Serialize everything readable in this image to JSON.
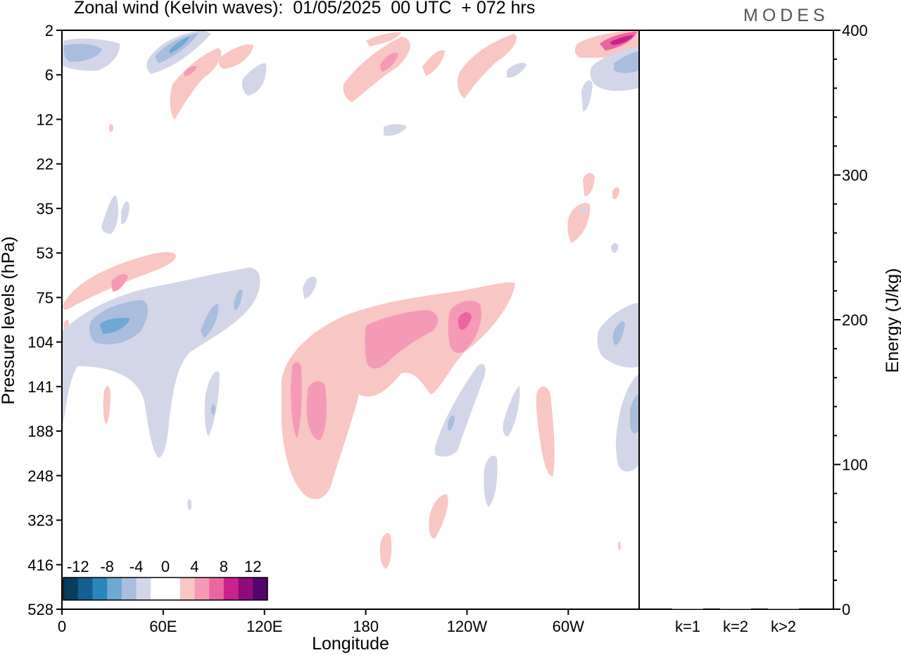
{
  "header": {
    "title": "Zonal wind (Kelvin waves):  01/05/2025  00 UTC  + 072 hrs",
    "logo": "MODES"
  },
  "chart_data": [
    {
      "type": "heatmap",
      "title": "Zonal wind (Kelvin waves):  01/05/2025  00 UTC  + 072 hrs",
      "xlabel": "Longitude",
      "ylabel": "Pressure levels (hPa)",
      "x_ticks": [
        "0",
        "60E",
        "120E",
        "180",
        "120W",
        "60W"
      ],
      "x_tick_values_deg": [
        0,
        60,
        120,
        180,
        240,
        300
      ],
      "x_range_deg": [
        0,
        342
      ],
      "y_ticks": [
        "2",
        "6",
        "12",
        "22",
        "35",
        "53",
        "75",
        "104",
        "141",
        "188",
        "248",
        "323",
        "416",
        "528"
      ],
      "y_scale": "log-pressure, inverted",
      "colorbar": {
        "labels": [
          "-12",
          "-8",
          "-4",
          "0",
          "4",
          "8",
          "12"
        ],
        "colors": [
          "#0a3d5c",
          "#135f91",
          "#2b86bd",
          "#6ea8d3",
          "#a9bedd",
          "#d3d6e8",
          "#ffffff",
          "#ffffff",
          "#f8c6c3",
          "#f49ab6",
          "#ea66a1",
          "#c8238a",
          "#8e0c79",
          "#52056b"
        ],
        "placement": "bottom-left inside plot"
      },
      "features": [
        {
          "sign": "negative",
          "magnitude": "moderate",
          "lon_deg": [
            0,
            30
          ],
          "pressure_hPa": [
            3,
            5
          ]
        },
        {
          "sign": "negative",
          "magnitude": "moderate",
          "lon_deg": [
            55,
            75
          ],
          "pressure_hPa": [
            2,
            6
          ]
        },
        {
          "sign": "positive",
          "magnitude": "weak",
          "lon_deg": [
            65,
            105
          ],
          "pressure_hPa": [
            4,
            12
          ]
        },
        {
          "sign": "positive",
          "magnitude": "moderate",
          "lon_deg": [
            170,
            215
          ],
          "pressure_hPa": [
            3,
            8
          ]
        },
        {
          "sign": "positive",
          "magnitude": "weak",
          "lon_deg": [
            235,
            270
          ],
          "pressure_hPa": [
            3,
            8
          ]
        },
        {
          "sign": "positive",
          "magnitude": "strong",
          "lon_deg": [
            305,
            342
          ],
          "pressure_hPa": [
            2,
            4
          ]
        },
        {
          "sign": "negative",
          "magnitude": "moderate",
          "lon_deg": [
            310,
            342
          ],
          "pressure_hPa": [
            4,
            9
          ]
        },
        {
          "sign": "positive",
          "magnitude": "weak",
          "lon_deg": [
            300,
            315
          ],
          "pressure_hPa": [
            30,
            50
          ]
        },
        {
          "sign": "positive",
          "magnitude": "moderate",
          "lon_deg": [
            15,
            70
          ],
          "pressure_hPa": [
            55,
            100
          ]
        },
        {
          "sign": "negative",
          "magnitude": "moderate",
          "lon_deg": [
            15,
            110
          ],
          "pressure_hPa": [
            80,
            200
          ]
        },
        {
          "sign": "positive",
          "magnitude": "strong",
          "lon_deg": [
            130,
            270
          ],
          "pressure_hPa": [
            70,
            330
          ]
        },
        {
          "sign": "negative",
          "magnitude": "weak",
          "lon_deg": [
            220,
            250
          ],
          "pressure_hPa": [
            110,
            230
          ]
        },
        {
          "sign": "positive",
          "magnitude": "weak",
          "lon_deg": [
            280,
            293
          ],
          "pressure_hPa": [
            140,
            250
          ]
        },
        {
          "sign": "negative",
          "magnitude": "moderate",
          "lon_deg": [
            315,
            342
          ],
          "pressure_hPa": [
            80,
            230
          ]
        },
        {
          "sign": "positive",
          "magnitude": "weak",
          "lon_deg": [
            217,
            230
          ],
          "pressure_hPa": [
            290,
            380
          ]
        },
        {
          "sign": "positive",
          "magnitude": "weak",
          "lon_deg": [
            188,
            195
          ],
          "pressure_hPa": [
            390,
            470
          ]
        }
      ]
    },
    {
      "type": "bar",
      "ylabel": "Energy (J/kg)",
      "categories": [
        "k=1",
        "k=2",
        "k>2"
      ],
      "values": [
        0,
        0,
        0
      ],
      "ylim": [
        0,
        400
      ],
      "y_ticks": [
        "0",
        "100",
        "200",
        "300",
        "400"
      ]
    }
  ]
}
